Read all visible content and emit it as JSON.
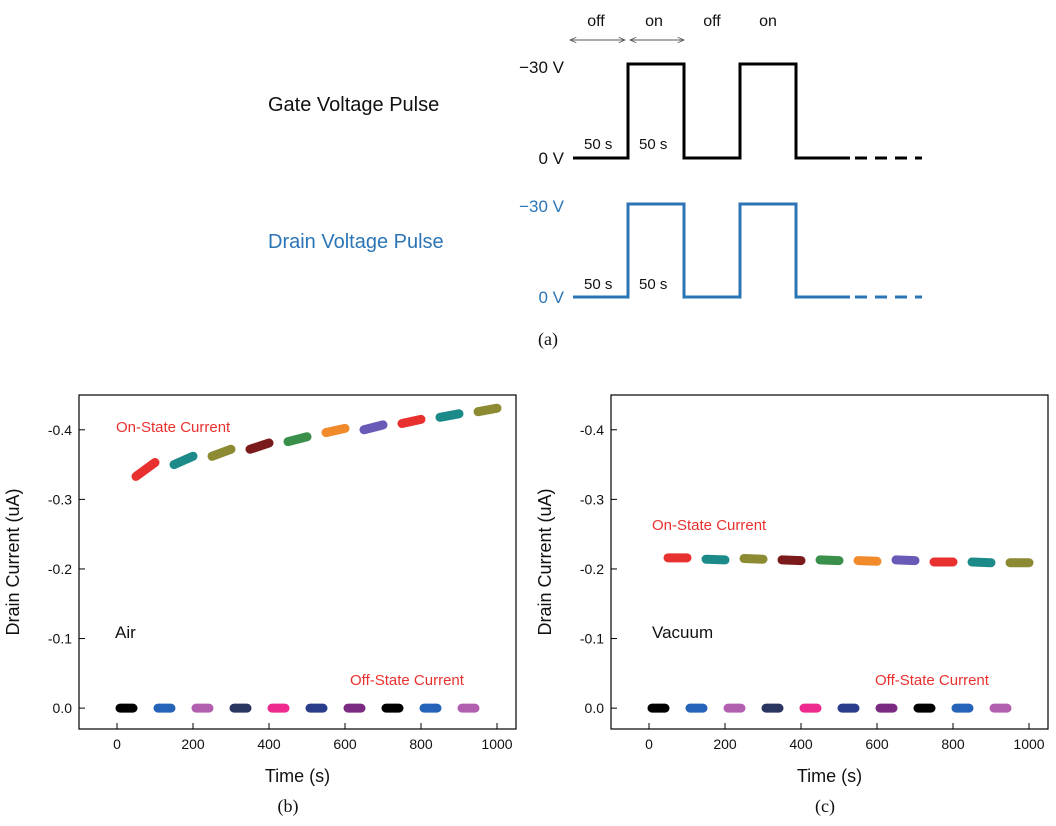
{
  "pulse_diagram": {
    "gate_label": "Gate Voltage Pulse",
    "drain_label": "Drain Voltage Pulse",
    "gate_high": "−30 V",
    "gate_low": "0 V",
    "drain_high": "−30 V",
    "drain_low": "0 V",
    "time_off": "50 s",
    "time_on": "50 s",
    "phase_labels": [
      "off",
      "on",
      "off",
      "on"
    ],
    "caption": "(a)",
    "colors": {
      "gate": "#000000",
      "drain": "#2b75b6"
    }
  },
  "panel_b_caption": "(b)",
  "panel_c_caption": "(c)",
  "chart_data": [
    {
      "type": "scatter",
      "panel": "b",
      "xlabel": "Time (s)",
      "ylabel": "Drain Current (uA)",
      "xlim": [
        -100,
        1050
      ],
      "ylim": [
        0.03,
        -0.45
      ],
      "xticks": [
        0,
        200,
        400,
        600,
        800,
        1000
      ],
      "yticks": [
        0.0,
        -0.1,
        -0.2,
        -0.3,
        -0.4
      ],
      "xtick_labels": [
        "0",
        "200",
        "400",
        "600",
        "800",
        "1000"
      ],
      "ytick_labels": [
        "0.0",
        "-0.1",
        "-0.2",
        "-0.3",
        "-0.4"
      ],
      "annotations": {
        "environment": "Air",
        "on_label": "On-State Current",
        "off_label": "Off-State Current"
      },
      "annotation_colors": {
        "on": "#e8312f",
        "off": "#e8312f"
      },
      "on_segments": [
        {
          "x0": 50,
          "x1": 100,
          "y0": -0.333,
          "y1": -0.353,
          "color": "#e8312f"
        },
        {
          "x0": 150,
          "x1": 200,
          "y0": -0.35,
          "y1": -0.362,
          "color": "#1d8a8a"
        },
        {
          "x0": 250,
          "x1": 300,
          "y0": -0.362,
          "y1": -0.372,
          "color": "#8c8a32"
        },
        {
          "x0": 350,
          "x1": 400,
          "y0": -0.372,
          "y1": -0.381,
          "color": "#7a1a1a"
        },
        {
          "x0": 450,
          "x1": 500,
          "y0": -0.383,
          "y1": -0.39,
          "color": "#3a8f4a"
        },
        {
          "x0": 550,
          "x1": 600,
          "y0": -0.396,
          "y1": -0.402,
          "color": "#f08a2a"
        },
        {
          "x0": 650,
          "x1": 700,
          "y0": -0.4,
          "y1": -0.407,
          "color": "#6a5ab8"
        },
        {
          "x0": 750,
          "x1": 800,
          "y0": -0.409,
          "y1": -0.415,
          "color": "#e8312f"
        },
        {
          "x0": 850,
          "x1": 900,
          "y0": -0.418,
          "y1": -0.423,
          "color": "#1d8a8a"
        },
        {
          "x0": 950,
          "x1": 1000,
          "y0": -0.426,
          "y1": -0.431,
          "color": "#8c8a32"
        }
      ],
      "off_segments": [
        {
          "x0": 0,
          "x1": 50,
          "y": 0.0,
          "color": "#000000"
        },
        {
          "x0": 100,
          "x1": 150,
          "y": 0.0,
          "color": "#2563b8"
        },
        {
          "x0": 200,
          "x1": 250,
          "y": 0.0,
          "color": "#b35fb0"
        },
        {
          "x0": 300,
          "x1": 350,
          "y": 0.0,
          "color": "#2a3560"
        },
        {
          "x0": 400,
          "x1": 450,
          "y": 0.0,
          "color": "#ee2a8e"
        },
        {
          "x0": 500,
          "x1": 550,
          "y": 0.0,
          "color": "#2a3c8c"
        },
        {
          "x0": 600,
          "x1": 650,
          "y": 0.0,
          "color": "#7a2a80"
        },
        {
          "x0": 700,
          "x1": 750,
          "y": 0.0,
          "color": "#000000"
        },
        {
          "x0": 800,
          "x1": 850,
          "y": 0.0,
          "color": "#2563b8"
        },
        {
          "x0": 900,
          "x1": 950,
          "y": 0.0,
          "color": "#b35fb0"
        }
      ]
    },
    {
      "type": "scatter",
      "panel": "c",
      "xlabel": "Time (s)",
      "ylabel": "Drain Current (uA)",
      "xlim": [
        -100,
        1050
      ],
      "ylim": [
        0.03,
        -0.45
      ],
      "xticks": [
        0,
        200,
        400,
        600,
        800,
        1000
      ],
      "yticks": [
        0.0,
        -0.1,
        -0.2,
        -0.3,
        -0.4
      ],
      "xtick_labels": [
        "0",
        "200",
        "400",
        "600",
        "800",
        "1000"
      ],
      "ytick_labels": [
        "0.0",
        "-0.1",
        "-0.2",
        "-0.3",
        "-0.4"
      ],
      "annotations": {
        "environment": "Vacuum",
        "on_label": "On-State Current",
        "off_label": "Off-State Current"
      },
      "annotation_colors": {
        "on": "#e8312f",
        "off": "#e8312f"
      },
      "on_segments": [
        {
          "x0": 50,
          "x1": 100,
          "y0": -0.216,
          "y1": -0.216,
          "color": "#e8312f"
        },
        {
          "x0": 150,
          "x1": 200,
          "y0": -0.214,
          "y1": -0.213,
          "color": "#1d8a8a"
        },
        {
          "x0": 250,
          "x1": 300,
          "y0": -0.215,
          "y1": -0.214,
          "color": "#8c8a32"
        },
        {
          "x0": 350,
          "x1": 400,
          "y0": -0.213,
          "y1": -0.212,
          "color": "#7a1a1a"
        },
        {
          "x0": 450,
          "x1": 500,
          "y0": -0.213,
          "y1": -0.212,
          "color": "#3a8f4a"
        },
        {
          "x0": 550,
          "x1": 600,
          "y0": -0.212,
          "y1": -0.211,
          "color": "#f08a2a"
        },
        {
          "x0": 650,
          "x1": 700,
          "y0": -0.213,
          "y1": -0.212,
          "color": "#6a5ab8"
        },
        {
          "x0": 750,
          "x1": 800,
          "y0": -0.21,
          "y1": -0.21,
          "color": "#e8312f"
        },
        {
          "x0": 850,
          "x1": 900,
          "y0": -0.21,
          "y1": -0.209,
          "color": "#1d8a8a"
        },
        {
          "x0": 950,
          "x1": 1000,
          "y0": -0.209,
          "y1": -0.209,
          "color": "#8c8a32"
        }
      ],
      "off_segments": [
        {
          "x0": 0,
          "x1": 50,
          "y": 0.0,
          "color": "#000000"
        },
        {
          "x0": 100,
          "x1": 150,
          "y": 0.0,
          "color": "#2563b8"
        },
        {
          "x0": 200,
          "x1": 250,
          "y": 0.0,
          "color": "#b35fb0"
        },
        {
          "x0": 300,
          "x1": 350,
          "y": 0.0,
          "color": "#2a3560"
        },
        {
          "x0": 400,
          "x1": 450,
          "y": 0.0,
          "color": "#ee2a8e"
        },
        {
          "x0": 500,
          "x1": 550,
          "y": 0.0,
          "color": "#2a3c8c"
        },
        {
          "x0": 600,
          "x1": 650,
          "y": 0.0,
          "color": "#7a2a80"
        },
        {
          "x0": 700,
          "x1": 750,
          "y": 0.0,
          "color": "#000000"
        },
        {
          "x0": 800,
          "x1": 850,
          "y": 0.0,
          "color": "#2563b8"
        },
        {
          "x0": 900,
          "x1": 950,
          "y": 0.0,
          "color": "#b35fb0"
        }
      ]
    }
  ]
}
